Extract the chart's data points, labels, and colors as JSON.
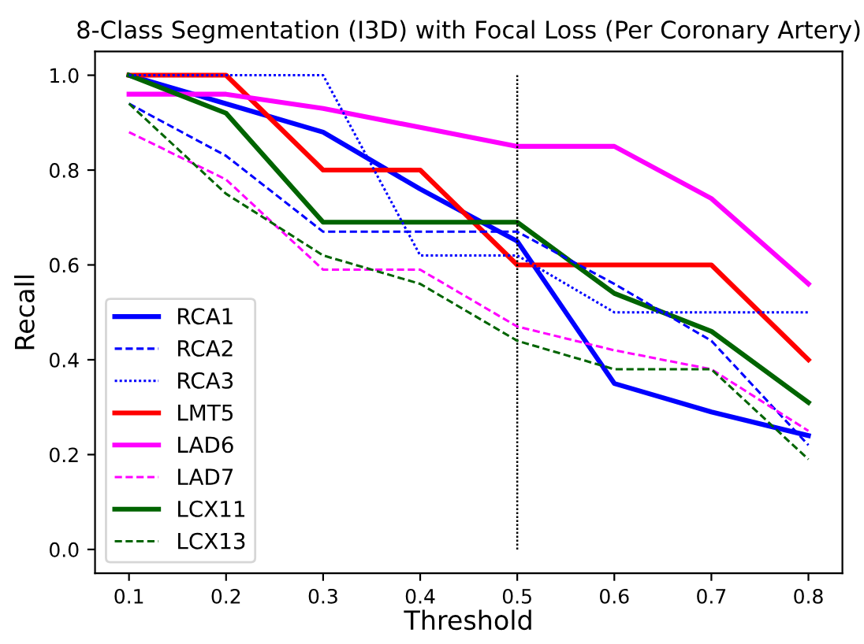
{
  "chart_data": {
    "type": "line",
    "title": "8-Class Segmentation (I3D) with Focal Loss (Per Coronary Artery)",
    "xlabel": "Threshold",
    "ylabel": "Recall",
    "x": [
      0.1,
      0.2,
      0.3,
      0.4,
      0.5,
      0.6,
      0.7,
      0.8
    ],
    "series": [
      {
        "name": "RCA1",
        "color": "#0000ff",
        "line_style": "solid",
        "values": [
          1.0,
          0.94,
          0.88,
          0.76,
          0.65,
          0.35,
          0.29,
          0.24
        ]
      },
      {
        "name": "RCA2",
        "color": "#0000ff",
        "line_style": "dashed",
        "values": [
          0.94,
          0.83,
          0.67,
          0.67,
          0.67,
          0.56,
          0.44,
          0.22
        ]
      },
      {
        "name": "RCA3",
        "color": "#0000ff",
        "line_style": "dotted",
        "values": [
          1.0,
          1.0,
          1.0,
          0.62,
          0.62,
          0.5,
          0.5,
          0.5
        ]
      },
      {
        "name": "LMT5",
        "color": "#ff0000",
        "line_style": "solid",
        "values": [
          1.0,
          1.0,
          0.8,
          0.8,
          0.6,
          0.6,
          0.6,
          0.4
        ]
      },
      {
        "name": "LAD6",
        "color": "#ff00ff",
        "line_style": "solid",
        "values": [
          0.96,
          0.96,
          0.93,
          0.89,
          0.85,
          0.85,
          0.74,
          0.56
        ]
      },
      {
        "name": "LAD7",
        "color": "#ff00ff",
        "line_style": "dashed",
        "values": [
          0.88,
          0.78,
          0.59,
          0.59,
          0.47,
          0.42,
          0.38,
          0.25
        ]
      },
      {
        "name": "LCX11",
        "color": "#006400",
        "line_style": "solid",
        "values": [
          1.0,
          0.92,
          0.69,
          0.69,
          0.69,
          0.54,
          0.46,
          0.31
        ]
      },
      {
        "name": "LCX13",
        "color": "#006400",
        "line_style": "dashed",
        "values": [
          0.94,
          0.75,
          0.62,
          0.56,
          0.44,
          0.38,
          0.38,
          0.19
        ]
      }
    ],
    "xlim": [
      0.065,
      0.835
    ],
    "ylim": [
      -0.05,
      1.05
    ],
    "xticks": [
      0.1,
      0.2,
      0.3,
      0.4,
      0.5,
      0.6,
      0.7,
      0.8
    ],
    "yticks": [
      {
        "value": 0.0,
        "label": "0.0"
      },
      0.2,
      0.4,
      0.6,
      0.8,
      {
        "value": 1.0,
        "label": "1.0"
      }
    ],
    "ref_lines": [
      {
        "axis": "x",
        "value": 0.5,
        "color": "#000000",
        "line_style": "dotted"
      }
    ],
    "legend": "bottom left",
    "grid": false,
    "marker": "none"
  }
}
